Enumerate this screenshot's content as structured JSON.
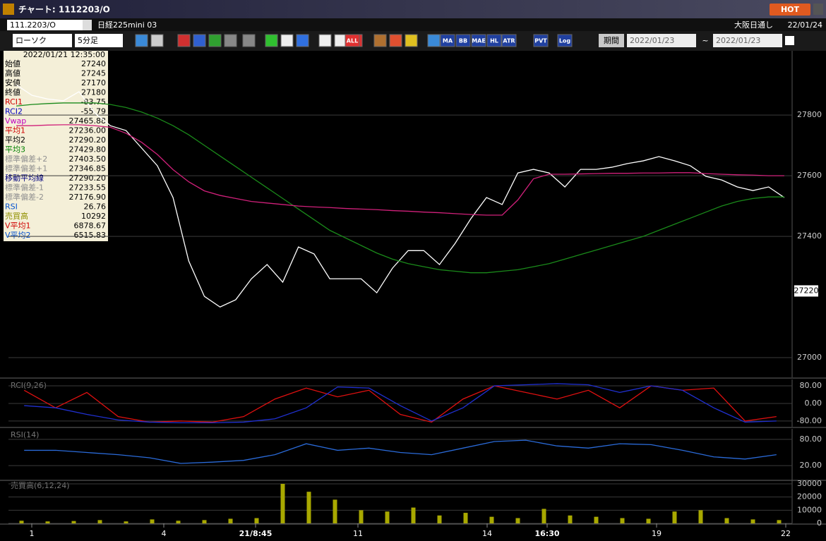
{
  "window": {
    "title": "チャート: 1112203/O",
    "hot": "HOT"
  },
  "header": {
    "code": "111.2203/O",
    "name": "日経225mini 03",
    "market": "大阪日通し",
    "date": "22/01/24"
  },
  "toolbar": {
    "chart_type": "ローソク",
    "interval": "5分足",
    "buttons": [
      "MA",
      "BB",
      "MAE",
      "HL",
      "ATR",
      "PVT",
      "Log",
      "ALL"
    ],
    "period": "期間",
    "from": "2022/01/23",
    "sep": "~",
    "to": "2022/01/23"
  },
  "info": {
    "datetime": "2022/01/21 12:35:00",
    "rows": [
      {
        "label": "始値",
        "value": "27240",
        "color": "#000000"
      },
      {
        "label": "高値",
        "value": "27245",
        "color": "#000000"
      },
      {
        "label": "安値",
        "value": "27170",
        "color": "#000000"
      },
      {
        "label": "終値",
        "value": "27180",
        "color": "#000000"
      },
      {
        "label": "RCI1",
        "value": "-83.75",
        "color": "#d00000"
      },
      {
        "label": "RCI2",
        "value": "-55.79",
        "color": "#0000c0"
      },
      {
        "label": "Vwap",
        "value": "27465.88",
        "color": "#c000c0"
      },
      {
        "label": "平均1",
        "value": "27236.00",
        "color": "#d00000"
      },
      {
        "label": "平均2",
        "value": "27290.20",
        "color": "#000000"
      },
      {
        "label": "平均3",
        "value": "27429.80",
        "color": "#008000"
      },
      {
        "label": "標準偏差+2",
        "value": "27403.50",
        "color": "#909090"
      },
      {
        "label": "標準偏差+1",
        "value": "27346.85",
        "color": "#909090"
      },
      {
        "label": "移動平均線",
        "value": "27290.20",
        "color": "#000080"
      },
      {
        "label": "標準偏差-1",
        "value": "27233.55",
        "color": "#909090"
      },
      {
        "label": "標準偏差-2",
        "value": "27176.90",
        "color": "#909090"
      },
      {
        "label": "RSI",
        "value": "26.76",
        "color": "#0050d0"
      },
      {
        "label": "売買高",
        "value": "10292",
        "color": "#909000"
      },
      {
        "label": "V平均1",
        "value": "6878.67",
        "color": "#d00000"
      },
      {
        "label": "V平均2",
        "value": "6515.83",
        "color": "#0050d0"
      }
    ]
  },
  "x_labels": [
    {
      "label": "1",
      "bold": false
    },
    {
      "label": "4",
      "bold": false
    },
    {
      "label": "21/8:45",
      "bold": true
    },
    {
      "label": "11",
      "bold": false
    },
    {
      "label": "14",
      "bold": false
    },
    {
      "label": "16:30",
      "bold": true
    },
    {
      "label": "19",
      "bold": false
    },
    {
      "label": "22",
      "bold": false
    }
  ],
  "chart_data": [
    {
      "type": "line",
      "ylim": [
        26935,
        28012
      ],
      "yticks": [
        27000,
        27400,
        27600,
        27800
      ],
      "last": 27220,
      "series": [
        {
          "name": "終値",
          "color": "#ffffff",
          "values": [
            27900,
            27865,
            27853,
            27847,
            27877,
            27807,
            27765,
            27749,
            27691,
            27633,
            27528,
            27319,
            27202,
            27167,
            27191,
            27260,
            27307,
            27249,
            27365,
            27342,
            27260,
            27260,
            27260,
            27214,
            27295,
            27353,
            27353,
            27307,
            27377,
            27458,
            27528,
            27505,
            27609,
            27621,
            27609,
            27563,
            27621,
            27621,
            27628,
            27640,
            27649,
            27663,
            27649,
            27633,
            27598,
            27586,
            27563,
            27551,
            27563,
            27528
          ]
        },
        {
          "name": "平均3",
          "color": "#1a8a1a",
          "values": [
            27830,
            27835,
            27838,
            27840,
            27840,
            27840,
            27835,
            27825,
            27810,
            27790,
            27765,
            27735,
            27700,
            27665,
            27630,
            27595,
            27560,
            27525,
            27490,
            27455,
            27420,
            27395,
            27370,
            27345,
            27325,
            27310,
            27300,
            27290,
            27285,
            27280,
            27280,
            27285,
            27290,
            27300,
            27310,
            27325,
            27340,
            27355,
            27370,
            27385,
            27400,
            27420,
            27440,
            27460,
            27480,
            27500,
            27515,
            27525,
            27530,
            27530
          ]
        },
        {
          "name": "Vwap",
          "color": "#d0207a",
          "values": [
            27765,
            27765,
            27767,
            27768,
            27768,
            27765,
            27760,
            27740,
            27710,
            27670,
            27620,
            27580,
            27550,
            27535,
            27525,
            27515,
            27510,
            27505,
            27500,
            27497,
            27495,
            27492,
            27490,
            27488,
            27485,
            27483,
            27480,
            27478,
            27475,
            27472,
            27470,
            27470,
            27520,
            27590,
            27605,
            27605,
            27606,
            27607,
            27608,
            27608,
            27609,
            27609,
            27610,
            27610,
            27607,
            27605,
            27603,
            27602,
            27600,
            27600
          ]
        }
      ]
    },
    {
      "type": "line",
      "title": "RCI(9,26)",
      "ylim": [
        -106,
        109
      ],
      "yticks": [
        {
          "value": 80,
          "label": "80.00"
        },
        {
          "value": 0,
          "label": "0.00"
        },
        {
          "value": -80,
          "label": "-80.00"
        }
      ],
      "series": [
        {
          "name": "RCI1",
          "color": "#e01010",
          "values": [
            60,
            -20,
            50,
            -60,
            -85,
            -80,
            -85,
            -60,
            20,
            70,
            30,
            60,
            -50,
            -85,
            20,
            80,
            50,
            20,
            60,
            -20,
            80,
            60,
            70,
            -80,
            -60
          ]
        },
        {
          "name": "RCI2",
          "color": "#2030d0",
          "values": [
            -10,
            -20,
            -50,
            -75,
            -85,
            -88,
            -88,
            -85,
            -70,
            -20,
            75,
            70,
            -10,
            -80,
            -20,
            80,
            85,
            90,
            85,
            50,
            80,
            60,
            -20,
            -85,
            -80
          ]
        }
      ]
    },
    {
      "type": "line",
      "title": "RSI(14)",
      "ylim": [
        -12,
        104
      ],
      "yticks": [
        {
          "value": 80,
          "label": "80.00"
        },
        {
          "value": 20,
          "label": "20.00"
        }
      ],
      "series": [
        {
          "name": "RSI",
          "color": "#2a6ad8",
          "values": [
            55,
            55,
            50,
            45,
            38,
            25,
            28,
            32,
            45,
            70,
            55,
            60,
            50,
            45,
            60,
            75,
            78,
            65,
            60,
            70,
            68,
            55,
            40,
            35,
            45
          ]
        }
      ]
    },
    {
      "type": "bar",
      "title": "売買高(6,12,24)",
      "ylim": [
        0,
        33200
      ],
      "yticks": [
        0,
        10000,
        20000,
        30000
      ],
      "color": "#a8a800",
      "values": [
        2000,
        1500,
        1800,
        2500,
        1500,
        3000,
        2000,
        2500,
        3500,
        4000,
        30000,
        24000,
        18000,
        10000,
        9000,
        12000,
        6000,
        8000,
        5000,
        4000,
        11000,
        6000,
        5000,
        4000,
        3500,
        9000,
        10000,
        4000,
        3000,
        2500
      ]
    }
  ]
}
